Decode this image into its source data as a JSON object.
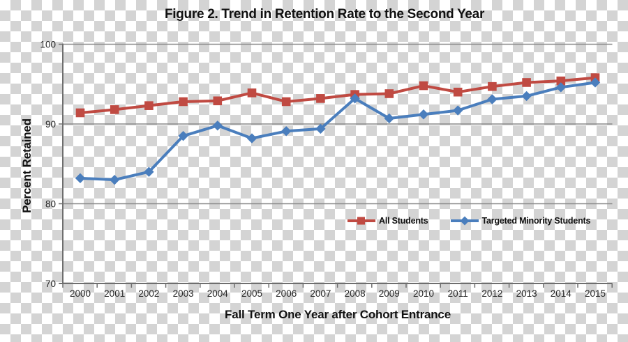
{
  "title": "Figure 2. Trend in Retention Rate to the Second Year",
  "y_axis": {
    "title": "Percent Retained",
    "tick_labels": [
      "100",
      "90",
      "80",
      "70"
    ]
  },
  "x_axis": {
    "title": "Fall Term One Year after Cohort Entrance"
  },
  "legend": {
    "items": [
      {
        "label": "All Students",
        "color": "#c04a42",
        "marker": "square"
      },
      {
        "label": "Targeted Minority Students",
        "color": "#4a7ebd",
        "marker": "diamond"
      }
    ]
  },
  "colors": {
    "all_students": "#c04a42",
    "targeted_minority": "#4a7ebd",
    "gridline": "#8a8a8a",
    "axis": "#6e6e6e",
    "text": "#111111",
    "checker_gray": "#d4d4d4"
  },
  "chart_data": {
    "type": "line",
    "title": "Figure 2. Trend in Retention Rate to the Second Year",
    "xlabel": "Fall Term One Year after Cohort Entrance",
    "ylabel": "Percent Retained",
    "ylim": [
      70,
      100
    ],
    "yticks": [
      100,
      90,
      80,
      70
    ],
    "grid": true,
    "legend_position": "inside-bottom",
    "categories": [
      "2000",
      "2001",
      "2002",
      "2003",
      "2004",
      "2005",
      "2006",
      "2007",
      "2008",
      "2009",
      "2010",
      "2011",
      "2012",
      "2013",
      "2014",
      "2015"
    ],
    "series": [
      {
        "name": "All Students",
        "color": "#c04a42",
        "marker": "square",
        "values": [
          91.4,
          91.8,
          92.3,
          92.8,
          92.9,
          93.9,
          92.8,
          93.2,
          93.7,
          93.8,
          94.8,
          94.0,
          94.7,
          95.2,
          95.4,
          95.8
        ]
      },
      {
        "name": "Targeted Minority Students",
        "color": "#4a7ebd",
        "marker": "diamond",
        "values": [
          83.2,
          83.0,
          84.0,
          88.5,
          89.8,
          88.2,
          89.1,
          89.4,
          93.2,
          90.7,
          91.2,
          91.7,
          93.1,
          93.5,
          94.6,
          95.2
        ]
      }
    ]
  }
}
